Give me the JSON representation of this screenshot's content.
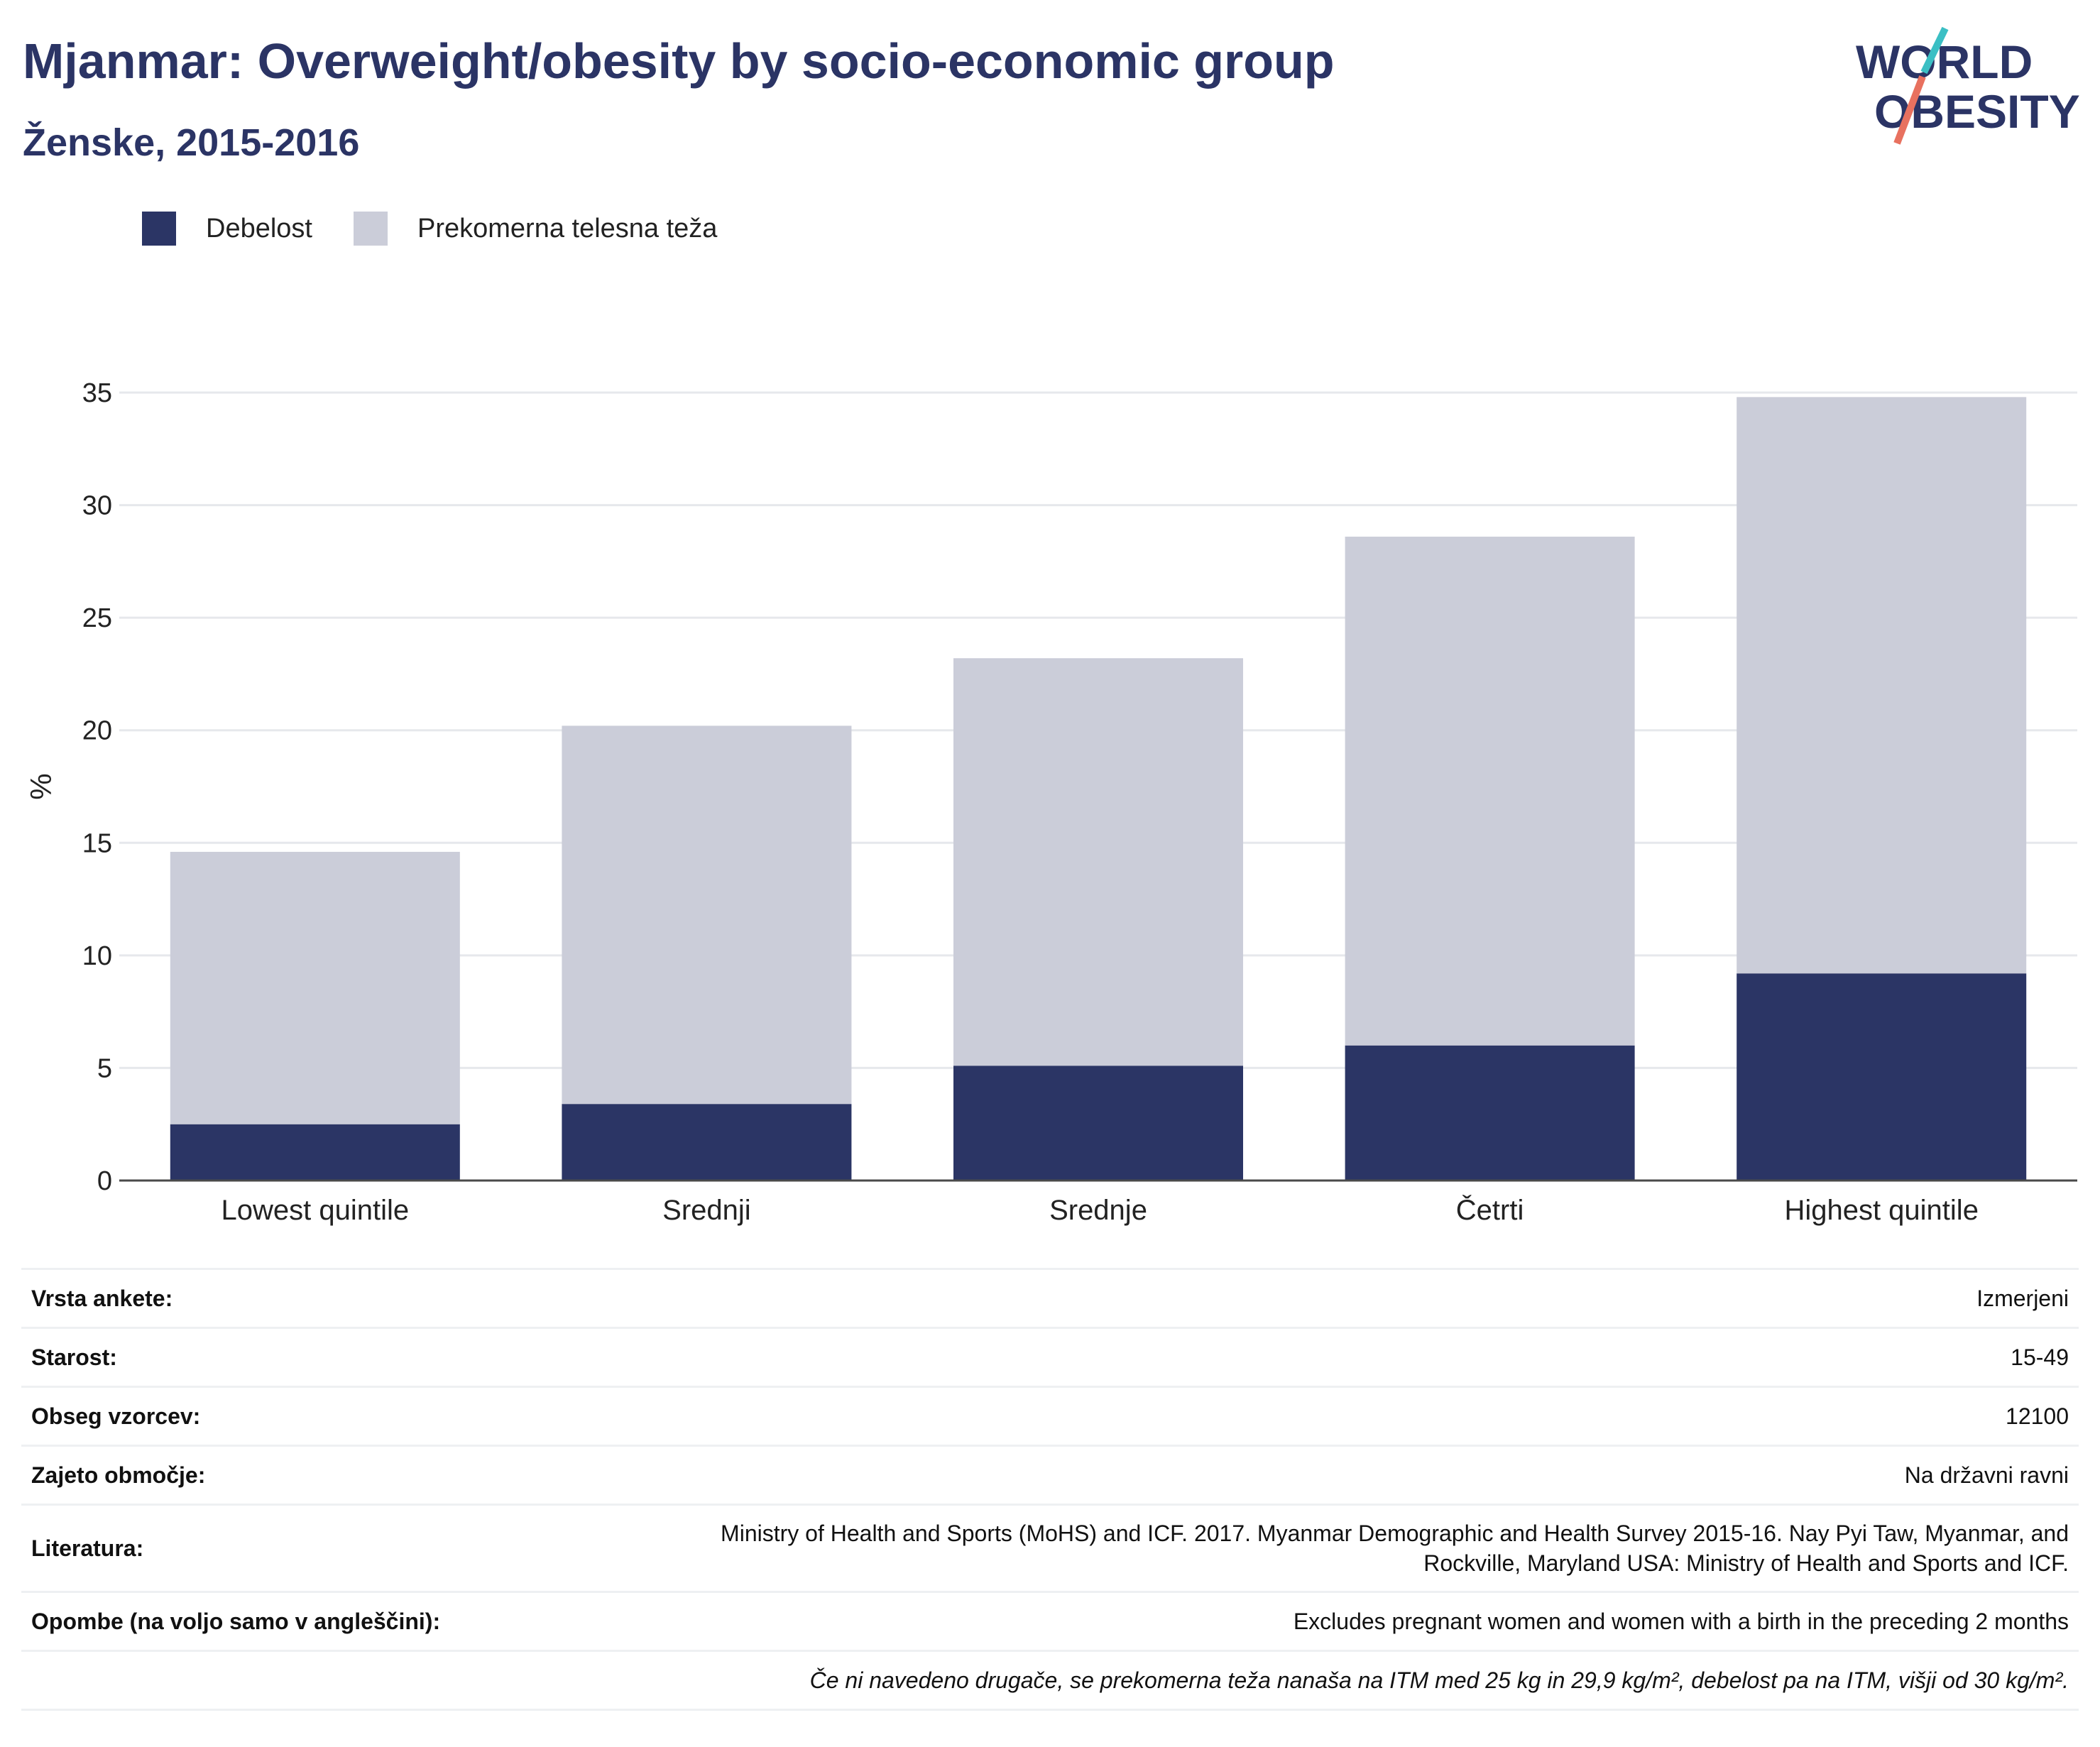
{
  "header": {
    "title": "Mjanmar: Overweight/obesity by socio-economic group",
    "subtitle": "Ženske, 2015-2016"
  },
  "logo": {
    "line1": "WORLD",
    "line2": "OBESITY"
  },
  "legend": [
    {
      "label": "Debelost",
      "color": "#2b3565"
    },
    {
      "label": "Prekomerna telesna teža",
      "color": "#cbcdd9"
    }
  ],
  "chart_data": {
    "type": "bar",
    "stacked": true,
    "categories": [
      "Lowest quintile",
      "Srednji",
      "Srednje",
      "Četrti",
      "Highest quintile"
    ],
    "series": [
      {
        "name": "Debelost",
        "color": "#2b3565",
        "values": [
          2.5,
          3.4,
          5.1,
          6.0,
          9.2
        ]
      },
      {
        "name": "Prekomerna telesna teža",
        "color": "#cbcdd9",
        "values": [
          12.1,
          16.8,
          18.1,
          22.6,
          25.6
        ]
      }
    ],
    "ylabel": "%",
    "ylim": [
      0,
      35
    ],
    "yticks": [
      0,
      5,
      10,
      15,
      20,
      25,
      30,
      35
    ],
    "grid": true,
    "legend_position": "top-left"
  },
  "info": {
    "survey_type": {
      "label": "Vrsta ankete:",
      "value": "Izmerjeni"
    },
    "age": {
      "label": "Starost:",
      "value": "15-49"
    },
    "sample_size": {
      "label": "Obseg vzorcev:",
      "value": "12100"
    },
    "area": {
      "label": "Zajeto območje:",
      "value": "Na državni ravni"
    },
    "literature": {
      "label": "Literatura:",
      "line1": "Ministry of Health and Sports (MoHS) and ICF. 2017. Myanmar Demographic and Health Survey 2015-16. Nay Pyi Taw, Myanmar, and",
      "line2": "Rockville, Maryland USA: Ministry of Health and Sports and ICF."
    },
    "notes": {
      "label": "Opombe (na voljo samo v angleščini):",
      "value": "Excludes pregnant women and women with a birth in the preceding 2 months"
    },
    "footnote": "Če ni navedeno drugače, se prekomerna teža nanaša na ITM med 25 kg in 29,9 kg/m², debelost pa na ITM, višji od 30 kg/m²."
  }
}
